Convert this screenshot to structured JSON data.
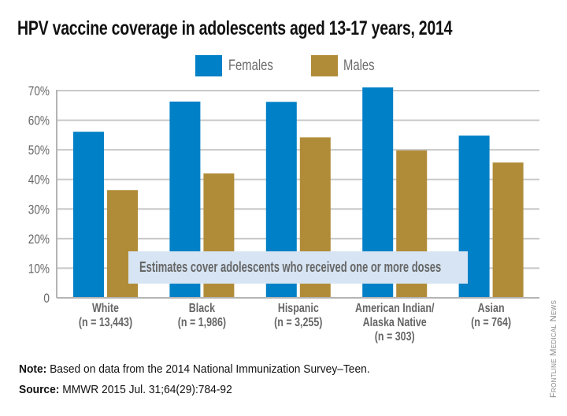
{
  "chart_data": {
    "type": "bar",
    "title": "HPV vaccine coverage in adolescents aged 13-17 years, 2014",
    "xlabel": "",
    "ylabel": "",
    "ylim": [
      0,
      70
    ],
    "yticks": [
      0,
      10,
      20,
      30,
      40,
      50,
      60,
      70
    ],
    "ytick_labels": [
      "0",
      "10%",
      "20%",
      "30%",
      "40%",
      "50%",
      "60%",
      "70%"
    ],
    "grid": true,
    "legend_position": "top-center",
    "categories": [
      {
        "name": "White",
        "n": "(n = 13,443)",
        "lines": [
          "White",
          "(n = 13,443)"
        ]
      },
      {
        "name": "Black",
        "n": "(n = 1,986)",
        "lines": [
          "Black",
          "(n = 1,986)"
        ]
      },
      {
        "name": "Hispanic",
        "n": "(n = 3,255)",
        "lines": [
          "Hispanic",
          "(n = 3,255)"
        ]
      },
      {
        "name": "American Indian/Alaska Native",
        "n": "(n = 303)",
        "lines": [
          "American Indian/",
          "Alaska Native",
          "(n = 303)"
        ]
      },
      {
        "name": "Asian",
        "n": "(n = 764)",
        "lines": [
          "Asian",
          "(n = 764)"
        ]
      }
    ],
    "series": [
      {
        "name": "Females",
        "color": "#0080c6",
        "values": [
          56.1,
          66.3,
          66.2,
          71.1,
          54.8
        ]
      },
      {
        "name": "Males",
        "color": "#b18c38",
        "values": [
          36.4,
          42.0,
          54.2,
          49.8,
          45.7
        ]
      }
    ],
    "annotation": "Estimates cover adolescents who received one or more doses"
  },
  "legend": [
    {
      "label": "Females",
      "color": "#0080c6"
    },
    {
      "label": "Males",
      "color": "#b18c38"
    }
  ],
  "footer": {
    "note_label": "Note:",
    "note_text": " Based on data from the 2014 National Immunization Survey–Teen.",
    "source_label": "Source:",
    "source_text": " MMWR 2015 Jul. 31;64(29):784-92"
  },
  "watermark": "Frontline Medical News",
  "colors": {
    "grid": "#c8c8c8",
    "axis": "#b4b4b4",
    "annotation_bg": "#d6e4f3",
    "text_gray": "#666666"
  }
}
